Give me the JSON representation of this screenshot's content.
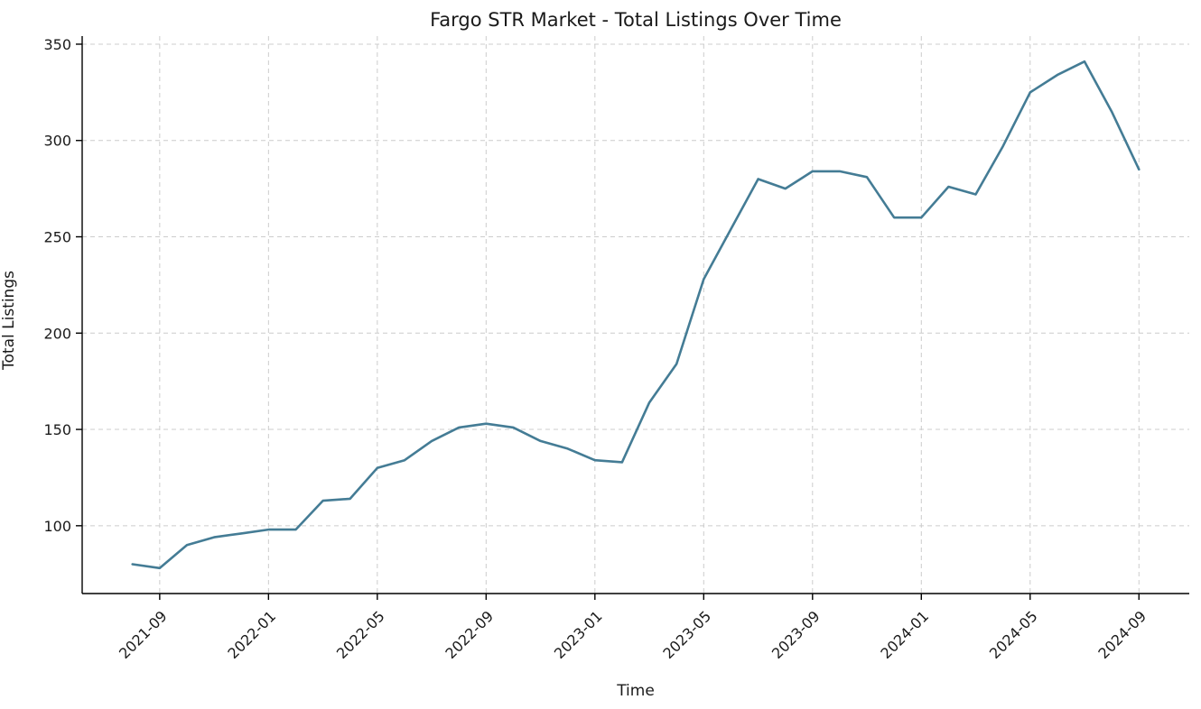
{
  "chart_data": {
    "type": "line",
    "title": "Fargo STR Market - Total Listings Over Time",
    "xlabel": "Time",
    "ylabel": "Total Listings",
    "x": [
      "2021-08",
      "2021-09",
      "2021-10",
      "2021-11",
      "2021-12",
      "2022-01",
      "2022-02",
      "2022-03",
      "2022-04",
      "2022-05",
      "2022-06",
      "2022-07",
      "2022-08",
      "2022-09",
      "2022-10",
      "2022-11",
      "2022-12",
      "2023-01",
      "2023-02",
      "2023-03",
      "2023-04",
      "2023-05",
      "2023-06",
      "2023-07",
      "2023-08",
      "2023-09",
      "2023-10",
      "2023-11",
      "2023-12",
      "2024-01",
      "2024-02",
      "2024-03",
      "2024-04",
      "2024-05",
      "2024-06",
      "2024-07",
      "2024-08",
      "2024-09"
    ],
    "series": [
      {
        "name": "Total Listings",
        "color": "#447c95",
        "values": [
          80,
          78,
          90,
          94,
          96,
          98,
          98,
          113,
          114,
          130,
          134,
          144,
          151,
          153,
          151,
          144,
          140,
          134,
          133,
          164,
          184,
          228,
          254,
          280,
          275,
          284,
          284,
          281,
          260,
          260,
          276,
          272,
          297,
          325,
          334,
          341,
          315,
          285
        ]
      }
    ],
    "x_tick_labels": [
      "2021-09",
      "2022-01",
      "2022-05",
      "2022-09",
      "2023-01",
      "2023-05",
      "2023-09",
      "2024-01",
      "2024-05",
      "2024-09"
    ],
    "x_tick_rotation": 45,
    "y_ticks": [
      100,
      150,
      200,
      250,
      300,
      350
    ],
    "ylim": [
      64.8,
      354.2
    ],
    "grid": "dashed",
    "grid_color": "#cccccc",
    "spine_color": "#000000",
    "legend": "none"
  }
}
